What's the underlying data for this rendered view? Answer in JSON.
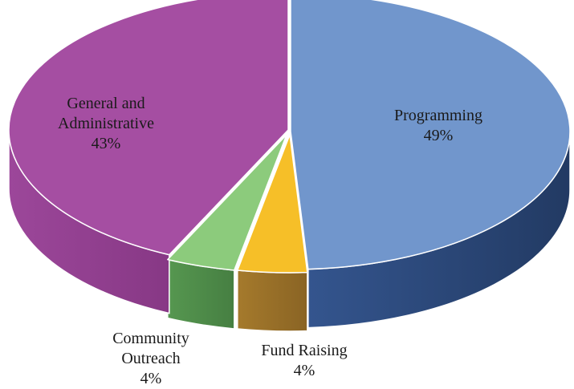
{
  "chart_data": {
    "type": "pie",
    "title": "",
    "slices": [
      {
        "label_lines": [
          "Programming"
        ],
        "percent_label": "49%",
        "value": 49,
        "color": "#7196cc",
        "side_color": "#2f4d7f"
      },
      {
        "label_lines": [
          "Fund Raising"
        ],
        "percent_label": "4%",
        "value": 4,
        "color": "#f6bf28",
        "side_color": "#9a7328"
      },
      {
        "label_lines": [
          "Community",
          "Outreach"
        ],
        "percent_label": "4%",
        "value": 4,
        "color": "#8ccb7c",
        "side_color": "#4f8c48"
      },
      {
        "label_lines": [
          "General and",
          "Administrative"
        ],
        "percent_label": "43%",
        "value": 43,
        "color": "#a54ea2",
        "side_color": "#883a87"
      }
    ],
    "style": "3d-exploded-slices"
  }
}
